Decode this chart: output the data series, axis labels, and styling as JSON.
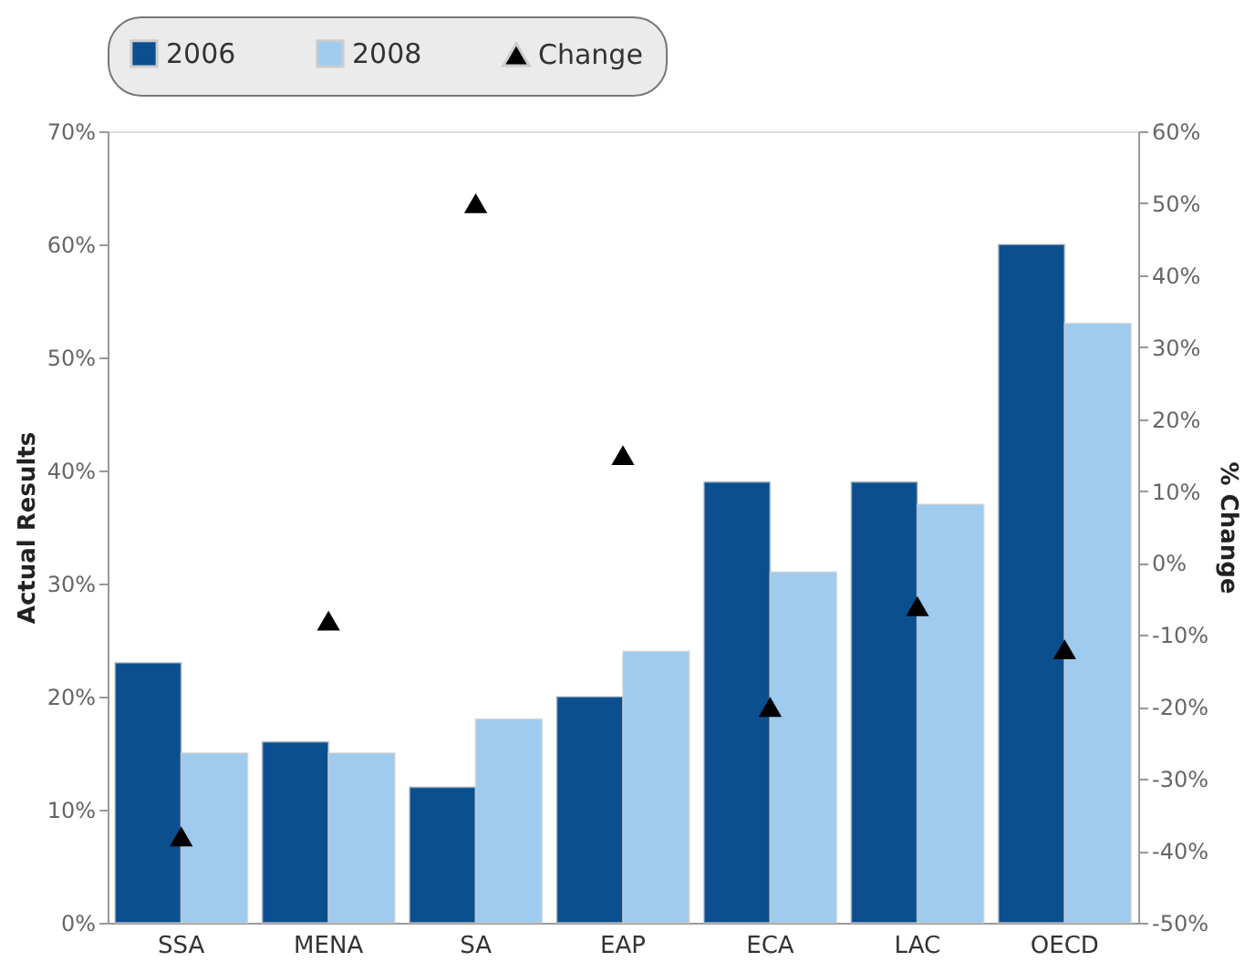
{
  "chart_data": {
    "type": "bar",
    "ylabel": "Actual Results",
    "y2label": "% Change",
    "categories": [
      "SSA",
      "MENA",
      "SA",
      "EAP",
      "ECA",
      "LAC",
      "OECD"
    ],
    "series": [
      {
        "name": "2006",
        "color": "#0b4f8f",
        "values": [
          23,
          16,
          12,
          20,
          39,
          39,
          60
        ]
      },
      {
        "name": "2008",
        "color": "#9ecbee",
        "values": [
          15,
          15,
          18,
          24,
          31,
          37,
          53
        ]
      },
      {
        "name": "Change",
        "type": "scatter",
        "axis": "y2",
        "marker": "triangle",
        "color": "#000000",
        "values": [
          -38,
          -8,
          50,
          15,
          -20,
          -6,
          -12
        ]
      }
    ],
    "ylim": [
      0,
      70
    ],
    "yticks": [
      {
        "value": 0,
        "label": "0%"
      },
      {
        "value": 10,
        "label": "10%"
      },
      {
        "value": 20,
        "label": "20%"
      },
      {
        "value": 30,
        "label": "30%"
      },
      {
        "value": 40,
        "label": "40%"
      },
      {
        "value": 50,
        "label": "50%"
      },
      {
        "value": 60,
        "label": "60%"
      },
      {
        "value": 70,
        "label": "70%"
      }
    ],
    "y2lim": [
      -50,
      60
    ],
    "y2ticks": [
      {
        "value": -50,
        "label": "-50%"
      },
      {
        "value": -40,
        "label": "-40%"
      },
      {
        "value": -30,
        "label": "-30%"
      },
      {
        "value": -20,
        "label": "-20%"
      },
      {
        "value": -10,
        "label": "-10%"
      },
      {
        "value": 0,
        "label": "0%"
      },
      {
        "value": 10,
        "label": "10%"
      },
      {
        "value": 20,
        "label": "20%"
      },
      {
        "value": 30,
        "label": "30%"
      },
      {
        "value": 40,
        "label": "40%"
      },
      {
        "value": 50,
        "label": "50%"
      },
      {
        "value": 60,
        "label": "60%"
      }
    ],
    "grid": false,
    "legend": "top"
  }
}
